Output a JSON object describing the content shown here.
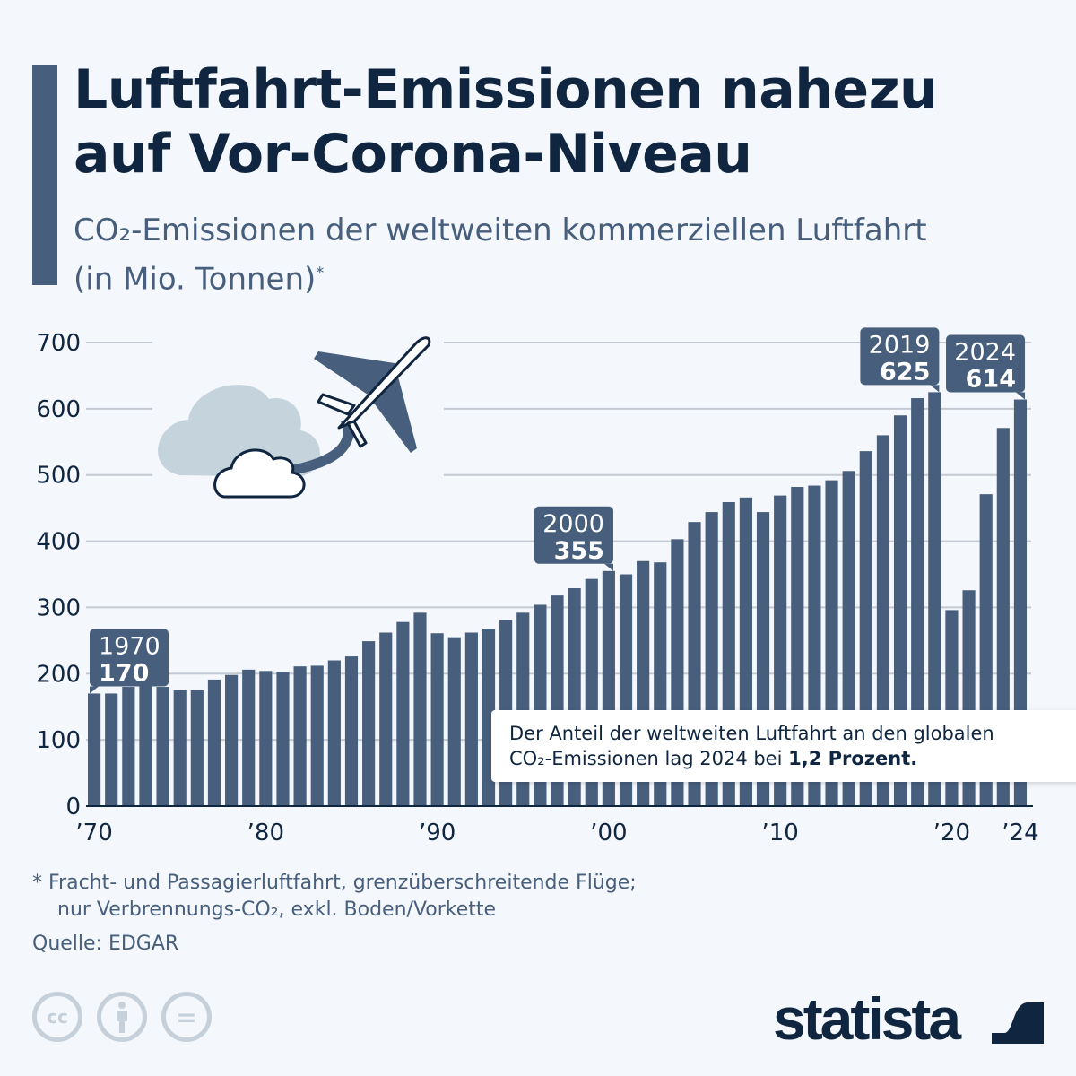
{
  "header": {
    "title_line1": "Luftfahrt-Emissionen nahezu",
    "title_line2": "auf Vor-Corona-Niveau",
    "subtitle_line1": "CO₂-Emissionen der weltweiten kommerziellen Luftfahrt",
    "subtitle_line2": "(in Mio. Tonnen)",
    "subtitle_mark": "*"
  },
  "colors": {
    "bar": "#475f7d",
    "title": "#0f2540",
    "background": "#f4f7fb",
    "grid": "#c3cad3"
  },
  "chart_data": {
    "type": "bar",
    "x": [
      1970,
      1971,
      1972,
      1973,
      1974,
      1975,
      1976,
      1977,
      1978,
      1979,
      1980,
      1981,
      1982,
      1983,
      1984,
      1985,
      1986,
      1987,
      1988,
      1989,
      1990,
      1991,
      1992,
      1993,
      1994,
      1995,
      1996,
      1997,
      1998,
      1999,
      2000,
      2001,
      2002,
      2003,
      2004,
      2005,
      2006,
      2007,
      2008,
      2009,
      2010,
      2011,
      2012,
      2013,
      2014,
      2015,
      2016,
      2017,
      2018,
      2019,
      2020,
      2021,
      2022,
      2023,
      2024
    ],
    "values": [
      170,
      170,
      180,
      187,
      180,
      175,
      175,
      191,
      198,
      206,
      204,
      203,
      211,
      212,
      220,
      226,
      249,
      262,
      278,
      292,
      261,
      255,
      262,
      268,
      281,
      292,
      304,
      318,
      329,
      343,
      355,
      350,
      370,
      368,
      403,
      429,
      444,
      459,
      466,
      444,
      469,
      482,
      484,
      492,
      506,
      536,
      560,
      590,
      616,
      625,
      296,
      326,
      471,
      571,
      614
    ],
    "ylim": [
      0,
      700
    ],
    "yticks": [
      0,
      100,
      200,
      300,
      400,
      500,
      600,
      700
    ],
    "xtick_labels": [
      {
        "year": 1970,
        "label": "’70"
      },
      {
        "year": 1980,
        "label": "’80"
      },
      {
        "year": 1990,
        "label": "’90"
      },
      {
        "year": 2000,
        "label": "’00"
      },
      {
        "year": 2010,
        "label": "’10"
      },
      {
        "year": 2020,
        "label": "’20"
      },
      {
        "year": 2024,
        "label": "’24"
      }
    ],
    "grid": true,
    "annotations": [
      {
        "year": 1970,
        "label_year": "1970",
        "label_value": "170"
      },
      {
        "year": 2000,
        "label_year": "2000",
        "label_value": "355"
      },
      {
        "year": 2019,
        "label_year": "2019",
        "label_value": "625"
      },
      {
        "year": 2024,
        "label_year": "2024",
        "label_value": "614"
      }
    ]
  },
  "infobox": {
    "text_line1": "Der Anteil der weltweiten Luftfahrt an den globalen",
    "text_line2": "CO₂-Emissionen lag 2024 bei ",
    "text_bold": "1,2 Prozent."
  },
  "footer": {
    "footnote_line1": "* Fracht- und Passagierluftfahrt, grenzüberschreitende Flüge;",
    "footnote_line2": "nur Verbrennungs-CO₂, exkl. Boden/Vorkette",
    "source": "Quelle: EDGAR",
    "cc_label": "cc",
    "equals_label": "=",
    "logo": "statista",
    "icons": [
      "cc-icon",
      "attribution-icon",
      "no-derivatives-icon",
      "statista-logo-icon"
    ]
  }
}
